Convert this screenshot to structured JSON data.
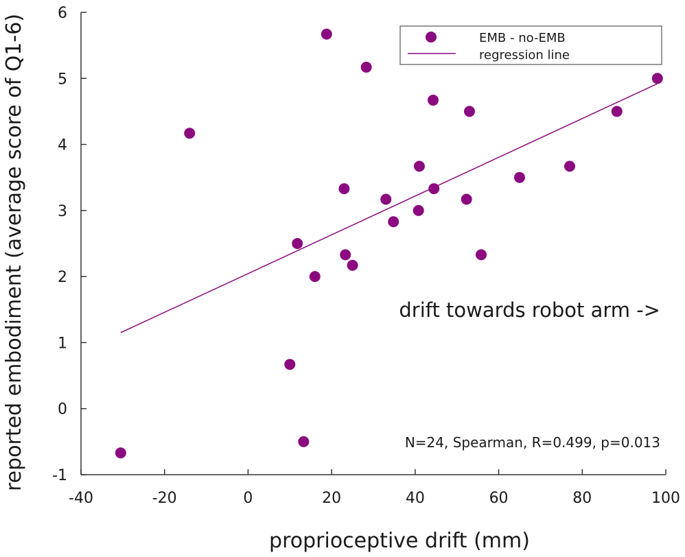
{
  "chart_data": {
    "type": "scatter",
    "xlabel": "proprioceptive drift (mm)",
    "ylabel": "reported embodiment (average score of Q1-6)",
    "xlim": [
      -40,
      100
    ],
    "ylim": [
      -1,
      6
    ],
    "x_ticks": [
      "-40",
      "-20",
      "0",
      "20",
      "40",
      "60",
      "80",
      "100"
    ],
    "y_ticks": [
      "-1",
      "0",
      "1",
      "2",
      "3",
      "4",
      "5",
      "6"
    ],
    "grid": false,
    "legend_position": "top-right",
    "colors": {
      "points": "#8b0a7f",
      "line": "#8b0a7f",
      "axis": "#333333"
    },
    "series": [
      {
        "name": "EMB - no-EMB",
        "points": [
          {
            "x": -30.5,
            "y": -0.67
          },
          {
            "x": -14,
            "y": 4.17
          },
          {
            "x": 10,
            "y": 0.67
          },
          {
            "x": 11.8,
            "y": 2.5
          },
          {
            "x": 13.3,
            "y": -0.5
          },
          {
            "x": 16,
            "y": 2.0
          },
          {
            "x": 18.8,
            "y": 5.67
          },
          {
            "x": 23,
            "y": 3.33
          },
          {
            "x": 23.3,
            "y": 2.33
          },
          {
            "x": 25,
            "y": 2.17
          },
          {
            "x": 28.3,
            "y": 5.17
          },
          {
            "x": 33,
            "y": 3.17
          },
          {
            "x": 34.8,
            "y": 2.83
          },
          {
            "x": 40.8,
            "y": 3.0
          },
          {
            "x": 41,
            "y": 3.67
          },
          {
            "x": 44.3,
            "y": 4.67
          },
          {
            "x": 44.5,
            "y": 3.33
          },
          {
            "x": 52.3,
            "y": 3.17
          },
          {
            "x": 53,
            "y": 4.5
          },
          {
            "x": 55.8,
            "y": 2.33
          },
          {
            "x": 65,
            "y": 3.5
          },
          {
            "x": 77,
            "y": 3.67
          },
          {
            "x": 88.3,
            "y": 4.5
          },
          {
            "x": 98,
            "y": 5.0
          }
        ]
      }
    ],
    "regression_line": {
      "name": "regression line",
      "x": [
        -30.5,
        98
      ],
      "y": [
        1.15,
        4.92
      ]
    },
    "annotations": {
      "drift_direction": "drift towards robot arm ->",
      "stats": "N=24, Spearman, R=0.499, p=0.013"
    }
  }
}
